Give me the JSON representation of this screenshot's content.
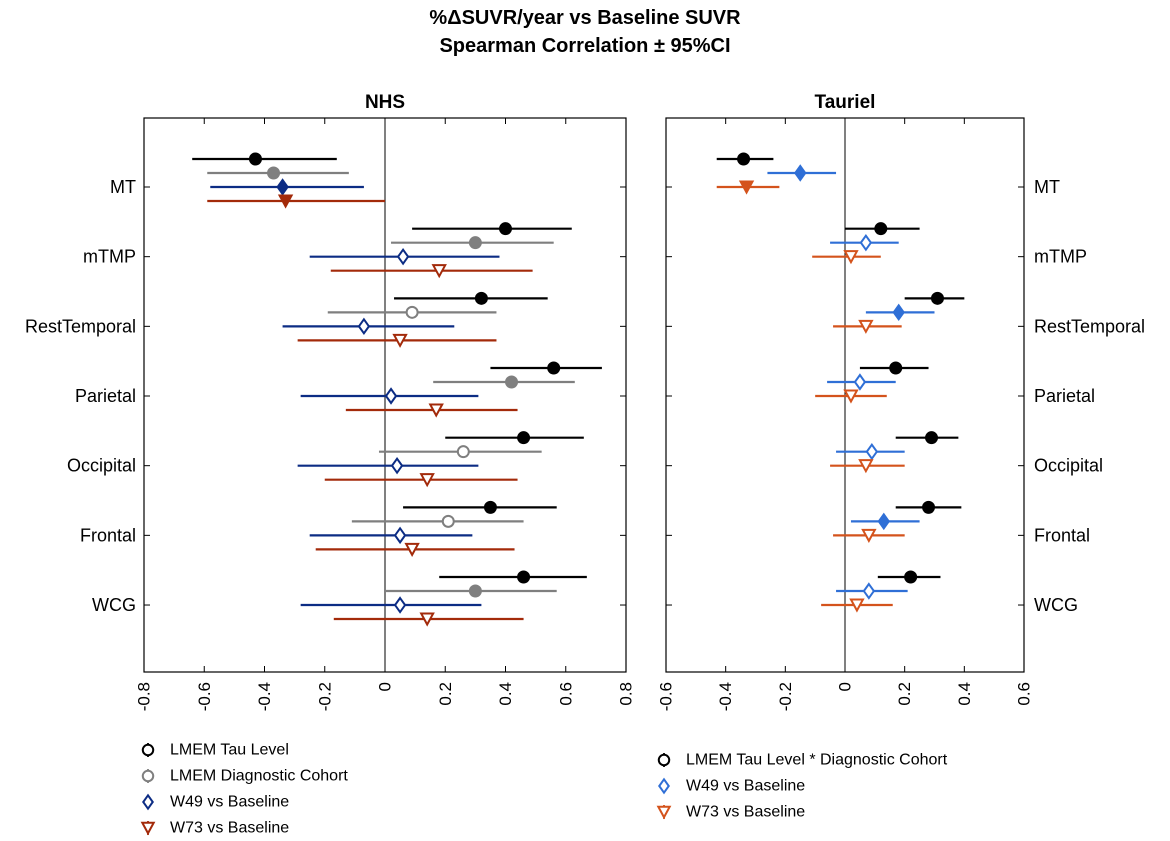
{
  "title": {
    "line1": "%ΔSUVR/year vs Baseline SUVR",
    "line2": "Spearman Correlation ± 95%CI"
  },
  "colors": {
    "tau": "#000000",
    "diag": "#7f7f7f",
    "w49": "#0c2c84",
    "w49_light": "#2f6fd6",
    "w73": "#a32a0a",
    "w73_light": "#d4531c"
  },
  "chart_data": [
    {
      "type": "scatter",
      "subtype": "forest-plot",
      "title": "NHS",
      "xlim": [
        -0.8,
        0.8
      ],
      "xticks": [
        "-0.8",
        "-0.6",
        "-0.4",
        "-0.2",
        "0",
        "0.2",
        "0.4",
        "0.6",
        "0.8"
      ],
      "categories": [
        "MT",
        "mTMP",
        "RestTemporal",
        "Parietal",
        "Occipital",
        "Frontal",
        "WCG"
      ],
      "ylabel_side": "left",
      "series": [
        {
          "name": "LMEM Tau Level",
          "marker": "circle",
          "color": "#000000",
          "points": [
            {
              "est": -0.43,
              "lo": -0.64,
              "hi": -0.16,
              "filled": true
            },
            {
              "est": 0.4,
              "lo": 0.09,
              "hi": 0.62,
              "filled": true
            },
            {
              "est": 0.32,
              "lo": 0.03,
              "hi": 0.54,
              "filled": true
            },
            {
              "est": 0.56,
              "lo": 0.35,
              "hi": 0.72,
              "filled": true
            },
            {
              "est": 0.46,
              "lo": 0.2,
              "hi": 0.66,
              "filled": true
            },
            {
              "est": 0.35,
              "lo": 0.06,
              "hi": 0.57,
              "filled": true
            },
            {
              "est": 0.46,
              "lo": 0.18,
              "hi": 0.67,
              "filled": true
            }
          ]
        },
        {
          "name": "LMEM Diagnostic Cohort",
          "marker": "circle",
          "color": "#7f7f7f",
          "points": [
            {
              "est": -0.37,
              "lo": -0.59,
              "hi": -0.12,
              "filled": true
            },
            {
              "est": 0.3,
              "lo": 0.02,
              "hi": 0.56,
              "filled": true
            },
            {
              "est": 0.09,
              "lo": -0.19,
              "hi": 0.37,
              "filled": false
            },
            {
              "est": 0.42,
              "lo": 0.16,
              "hi": 0.63,
              "filled": true
            },
            {
              "est": 0.26,
              "lo": -0.02,
              "hi": 0.52,
              "filled": false
            },
            {
              "est": 0.21,
              "lo": -0.11,
              "hi": 0.46,
              "filled": false
            },
            {
              "est": 0.3,
              "lo": 0.0,
              "hi": 0.57,
              "filled": true
            }
          ]
        },
        {
          "name": "W49 vs Baseline",
          "marker": "diamond",
          "color": "#0c2c84",
          "points": [
            {
              "est": -0.34,
              "lo": -0.58,
              "hi": -0.07,
              "filled": true
            },
            {
              "est": 0.06,
              "lo": -0.25,
              "hi": 0.38,
              "filled": false
            },
            {
              "est": -0.07,
              "lo": -0.34,
              "hi": 0.23,
              "filled": false
            },
            {
              "est": 0.02,
              "lo": -0.28,
              "hi": 0.31,
              "filled": false
            },
            {
              "est": 0.04,
              "lo": -0.29,
              "hi": 0.31,
              "filled": false
            },
            {
              "est": 0.05,
              "lo": -0.25,
              "hi": 0.29,
              "filled": false
            },
            {
              "est": 0.05,
              "lo": -0.28,
              "hi": 0.32,
              "filled": false
            }
          ]
        },
        {
          "name": "W73 vs Baseline",
          "marker": "triangle-down",
          "color": "#a32a0a",
          "points": [
            {
              "est": -0.33,
              "lo": -0.59,
              "hi": 0.0,
              "filled": true
            },
            {
              "est": 0.18,
              "lo": -0.18,
              "hi": 0.49,
              "filled": false
            },
            {
              "est": 0.05,
              "lo": -0.29,
              "hi": 0.37,
              "filled": false
            },
            {
              "est": 0.17,
              "lo": -0.13,
              "hi": 0.44,
              "filled": false
            },
            {
              "est": 0.14,
              "lo": -0.2,
              "hi": 0.44,
              "filled": false
            },
            {
              "est": 0.09,
              "lo": -0.23,
              "hi": 0.43,
              "filled": false
            },
            {
              "est": 0.14,
              "lo": -0.17,
              "hi": 0.46,
              "filled": false
            }
          ]
        }
      ]
    },
    {
      "type": "scatter",
      "subtype": "forest-plot",
      "title": "Tauriel",
      "xlim": [
        -0.6,
        0.6
      ],
      "xticks": [
        "-0.6",
        "-0.4",
        "-0.2",
        "0",
        "0.2",
        "0.4",
        "0.6"
      ],
      "categories": [
        "MT",
        "mTMP",
        "RestTemporal",
        "Parietal",
        "Occipital",
        "Frontal",
        "WCG"
      ],
      "ylabel_side": "right",
      "series": [
        {
          "name": "LMEM Tau Level * Diagnostic Cohort",
          "marker": "circle",
          "color": "#000000",
          "points": [
            {
              "est": -0.34,
              "lo": -0.43,
              "hi": -0.24,
              "filled": true
            },
            {
              "est": 0.12,
              "lo": 0.0,
              "hi": 0.25,
              "filled": true
            },
            {
              "est": 0.31,
              "lo": 0.2,
              "hi": 0.4,
              "filled": true
            },
            {
              "est": 0.17,
              "lo": 0.05,
              "hi": 0.28,
              "filled": true
            },
            {
              "est": 0.29,
              "lo": 0.17,
              "hi": 0.38,
              "filled": true
            },
            {
              "est": 0.28,
              "lo": 0.17,
              "hi": 0.39,
              "filled": true
            },
            {
              "est": 0.22,
              "lo": 0.11,
              "hi": 0.32,
              "filled": true
            }
          ]
        },
        {
          "name": "W49 vs Baseline",
          "marker": "diamond",
          "color": "#2f6fd6",
          "points": [
            {
              "est": -0.15,
              "lo": -0.26,
              "hi": -0.03,
              "filled": true
            },
            {
              "est": 0.07,
              "lo": -0.05,
              "hi": 0.18,
              "filled": false
            },
            {
              "est": 0.18,
              "lo": 0.07,
              "hi": 0.3,
              "filled": true
            },
            {
              "est": 0.05,
              "lo": -0.06,
              "hi": 0.17,
              "filled": false
            },
            {
              "est": 0.09,
              "lo": -0.03,
              "hi": 0.2,
              "filled": false
            },
            {
              "est": 0.13,
              "lo": 0.02,
              "hi": 0.25,
              "filled": true
            },
            {
              "est": 0.08,
              "lo": -0.03,
              "hi": 0.21,
              "filled": false
            }
          ]
        },
        {
          "name": "W73 vs Baseline",
          "marker": "triangle-down",
          "color": "#d4531c",
          "points": [
            {
              "est": -0.33,
              "lo": -0.43,
              "hi": -0.22,
              "filled": true
            },
            {
              "est": 0.02,
              "lo": -0.11,
              "hi": 0.12,
              "filled": false
            },
            {
              "est": 0.07,
              "lo": -0.04,
              "hi": 0.19,
              "filled": false
            },
            {
              "est": 0.02,
              "lo": -0.1,
              "hi": 0.14,
              "filled": false
            },
            {
              "est": 0.07,
              "lo": -0.05,
              "hi": 0.2,
              "filled": false
            },
            {
              "est": 0.08,
              "lo": -0.04,
              "hi": 0.2,
              "filled": false
            },
            {
              "est": 0.04,
              "lo": -0.08,
              "hi": 0.16,
              "filled": false
            }
          ]
        }
      ]
    }
  ],
  "legends": {
    "left": [
      {
        "label": "LMEM Tau Level",
        "marker": "circle",
        "color": "#000000"
      },
      {
        "label": "LMEM Diagnostic Cohort",
        "marker": "circle",
        "color": "#7f7f7f"
      },
      {
        "label": "W49 vs Baseline",
        "marker": "diamond",
        "color": "#0c2c84"
      },
      {
        "label": "W73 vs Baseline",
        "marker": "triangle-down",
        "color": "#a32a0a"
      }
    ],
    "right": [
      {
        "label": "LMEM Tau Level * Diagnostic Cohort",
        "marker": "circle",
        "color": "#000000"
      },
      {
        "label": "W49 vs Baseline",
        "marker": "diamond",
        "color": "#2f6fd6"
      },
      {
        "label": "W73 vs Baseline",
        "marker": "triangle-down",
        "color": "#d4531c"
      }
    ]
  }
}
